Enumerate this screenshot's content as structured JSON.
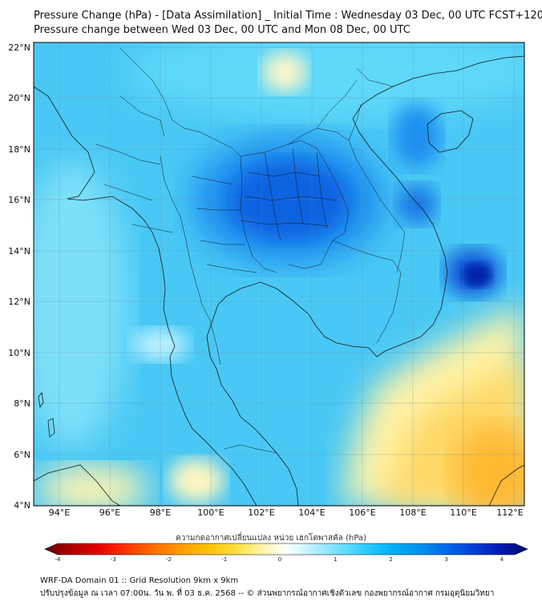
{
  "title_line1": "Pressure Change (hPa) - [Data Assimilation] _ Initial Time : Wednesday 03 Dec, 00 UTC FCST+120",
  "title_line2": "Pressure change between Wed 03 Dec, 00 UTC and Mon 08 Dec, 00 UTC",
  "lat_labels": [
    "22°N",
    "20°N",
    "18°N",
    "16°N",
    "14°N",
    "12°N",
    "10°N",
    "8°N",
    "6°N",
    "4°N"
  ],
  "lon_labels": [
    "94°E",
    "96°E",
    "98°E",
    "100°E",
    "102°E",
    "104°E",
    "106°E",
    "108°E",
    "110°E",
    "112°E"
  ],
  "colorbar": {
    "title": "ความกดอากาศเปลี่ยนแปลง หน่วย เฮกโตพาสคัล (hPa)",
    "ticks": [
      "-4",
      "-3",
      "-2",
      "-1",
      "0",
      "1",
      "2",
      "3",
      "4"
    ],
    "colors": [
      "#6b0000",
      "#b00000",
      "#e60000",
      "#ff3300",
      "#ff6a00",
      "#ff9a00",
      "#ffc000",
      "#ffdd33",
      "#fff2a0",
      "#ffffff",
      "#b8f0ff",
      "#6fe0ff",
      "#2ccaff",
      "#00b0f5",
      "#0090ee",
      "#0068e6",
      "#0040d8",
      "#0018b0",
      "#000a70"
    ]
  },
  "footer_line1": "WRF-DA Domain 01 :: Grid Resolution 9km x 9km",
  "footer_line2": "ปรับปรุงข้อมูล ณ เวลา 07:00น. วัน พ. ที่ 03 ธ.ค. 2568 -- © ส่วนพยากรณ์อากาศเชิงตัวเลข กองพยากรณ์อากาศ กรมอุตุนิยมวิทยา"
}
